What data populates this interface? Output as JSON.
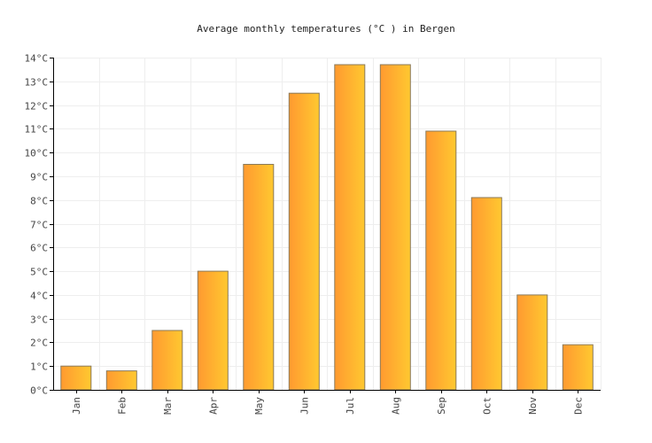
{
  "chart_data": {
    "type": "bar",
    "title": "Average monthly temperatures (°C ) in Bergen",
    "xlabel": "",
    "ylabel": "",
    "categories": [
      "Jan",
      "Feb",
      "Mar",
      "Apr",
      "May",
      "Jun",
      "Jul",
      "Aug",
      "Sep",
      "Oct",
      "Nov",
      "Dec"
    ],
    "values": [
      1.0,
      0.8,
      2.5,
      5.0,
      9.5,
      12.5,
      13.7,
      13.7,
      10.9,
      8.1,
      4.0,
      1.9
    ],
    "ylim": [
      0,
      14
    ],
    "yticks": [
      0,
      1,
      2,
      3,
      4,
      5,
      6,
      7,
      8,
      9,
      10,
      11,
      12,
      13,
      14
    ],
    "ytick_suffix": "°C",
    "grid": true,
    "colors": {
      "bar_left": "#ff9a30",
      "bar_right": "#ffc830",
      "bar_edge": "#8a7a5a"
    }
  }
}
